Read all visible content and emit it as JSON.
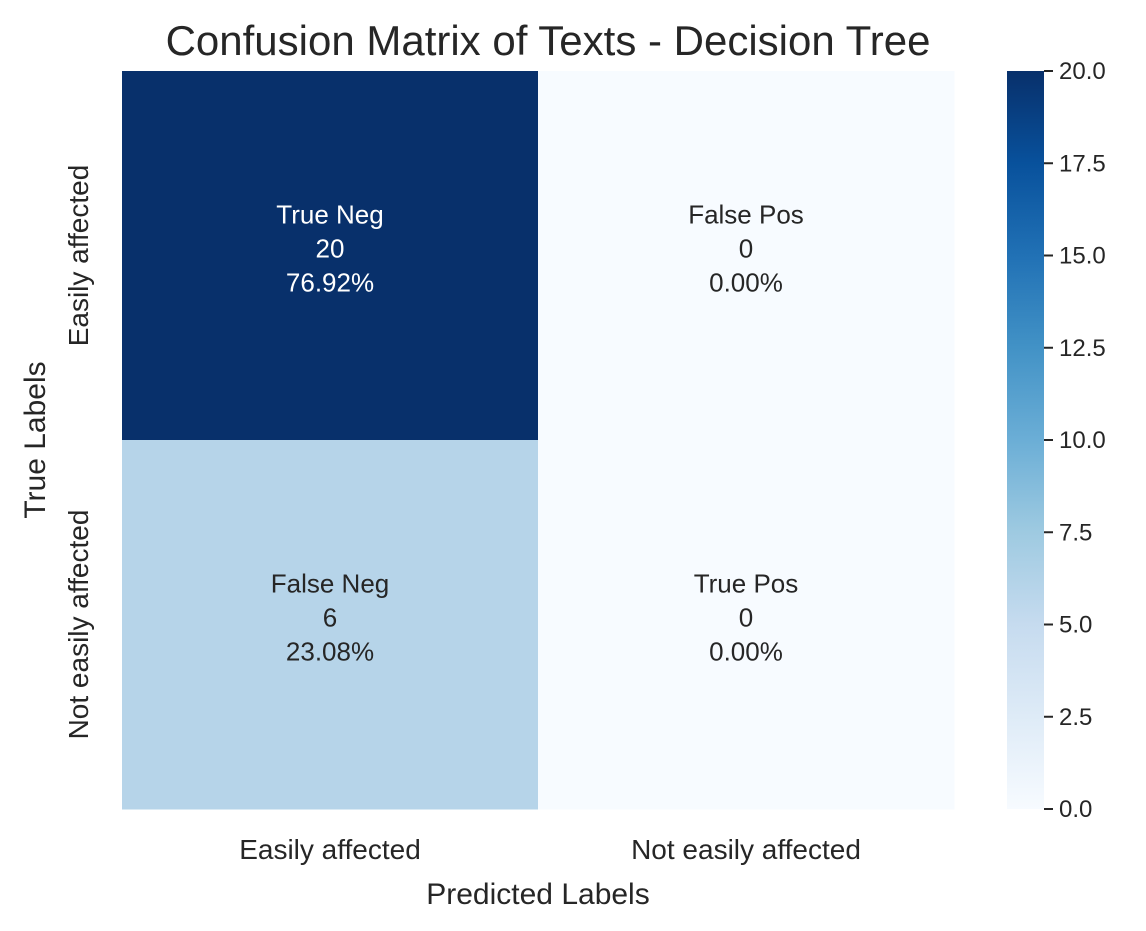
{
  "chart_data": {
    "type": "heatmap",
    "title": "Confusion Matrix of Texts - Decision Tree",
    "xlabel": "Predicted Labels",
    "ylabel": "True Labels",
    "x_categories": [
      "Easily affected",
      "Not easily affected"
    ],
    "y_categories": [
      "Easily affected",
      "Not easily affected"
    ],
    "values": [
      [
        20,
        0
      ],
      [
        6,
        0
      ]
    ],
    "cell_labels": [
      [
        {
          "name": "True Neg",
          "count": "20",
          "percent": "76.92%"
        },
        {
          "name": "False Pos",
          "count": "0",
          "percent": "0.00%"
        }
      ],
      [
        {
          "name": "False Neg",
          "count": "6",
          "percent": "23.08%"
        },
        {
          "name": "True Pos",
          "count": "0",
          "percent": "0.00%"
        }
      ]
    ],
    "colorbar": {
      "range": [
        0,
        20
      ],
      "ticks": [
        "0.0",
        "2.5",
        "5.0",
        "7.5",
        "10.0",
        "12.5",
        "15.0",
        "17.5",
        "20.0"
      ],
      "colormap": "Blues",
      "colors": [
        "#f7fbff",
        "#deebf7",
        "#c6dbef",
        "#9ecae1",
        "#6baed6",
        "#4292c6",
        "#2171b5",
        "#08519c",
        "#08306b"
      ]
    }
  }
}
